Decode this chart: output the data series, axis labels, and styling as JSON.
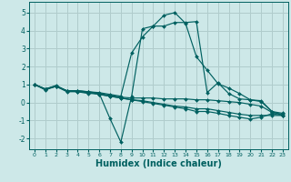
{
  "bg_color": "#cde8e8",
  "grid_color": "#b0cccc",
  "line_color": "#006060",
  "marker_color": "#006060",
  "xlabel": "Humidex (Indice chaleur)",
  "xlabel_fontsize": 7,
  "xlim": [
    -0.5,
    23.5
  ],
  "ylim": [
    -2.6,
    5.6
  ],
  "xticks": [
    0,
    1,
    2,
    3,
    4,
    5,
    6,
    7,
    8,
    9,
    10,
    11,
    12,
    13,
    14,
    15,
    16,
    17,
    18,
    19,
    20,
    21,
    22,
    23
  ],
  "yticks": [
    -2,
    -1,
    0,
    1,
    2,
    3,
    4,
    5
  ],
  "curve1_x": [
    0,
    1,
    2,
    3,
    4,
    5,
    6,
    7,
    8,
    9,
    10,
    11,
    12,
    13,
    14,
    15,
    16,
    17,
    18,
    19,
    20,
    21,
    22,
    23
  ],
  "curve1_y": [
    1.0,
    0.7,
    0.9,
    0.6,
    0.6,
    0.5,
    0.5,
    -0.9,
    -2.2,
    0.35,
    4.1,
    4.25,
    4.85,
    5.0,
    4.4,
    2.55,
    1.8,
    1.05,
    0.8,
    0.5,
    0.15,
    0.1,
    -0.5,
    -0.72
  ],
  "curve2_x": [
    0,
    1,
    2,
    3,
    4,
    5,
    6,
    7,
    8,
    9,
    10,
    11,
    12,
    13,
    14,
    15,
    16,
    17,
    18,
    19,
    20,
    21,
    22,
    23
  ],
  "curve2_y": [
    1.0,
    0.75,
    0.95,
    0.65,
    0.65,
    0.6,
    0.55,
    0.45,
    0.35,
    2.75,
    3.65,
    4.25,
    4.25,
    4.45,
    4.45,
    4.5,
    0.55,
    1.1,
    0.5,
    0.2,
    0.15,
    0.05,
    -0.5,
    -0.6
  ],
  "curve3_x": [
    0,
    1,
    2,
    3,
    4,
    5,
    6,
    7,
    8,
    9,
    10,
    11,
    12,
    13,
    14,
    15,
    16,
    17,
    18,
    19,
    20,
    21,
    22,
    23
  ],
  "curve3_y": [
    1.0,
    0.75,
    0.9,
    0.65,
    0.65,
    0.6,
    0.5,
    0.4,
    0.3,
    0.25,
    0.25,
    0.25,
    0.2,
    0.2,
    0.2,
    0.15,
    0.15,
    0.1,
    0.05,
    0.0,
    -0.1,
    -0.2,
    -0.55,
    -0.65
  ],
  "curve4_x": [
    0,
    1,
    2,
    3,
    4,
    5,
    6,
    7,
    8,
    9,
    10,
    11,
    12,
    13,
    14,
    15,
    16,
    17,
    18,
    19,
    20,
    21,
    22,
    23
  ],
  "curve4_y": [
    1.0,
    0.75,
    0.9,
    0.65,
    0.65,
    0.58,
    0.45,
    0.35,
    0.25,
    0.15,
    0.1,
    0.0,
    -0.1,
    -0.2,
    -0.25,
    -0.35,
    -0.35,
    -0.45,
    -0.55,
    -0.65,
    -0.72,
    -0.72,
    -0.72,
    -0.72
  ],
  "curve5_x": [
    0,
    1,
    2,
    3,
    4,
    5,
    6,
    7,
    8,
    9,
    10,
    11,
    12,
    13,
    14,
    15,
    16,
    17,
    18,
    19,
    20,
    21,
    22,
    23
  ],
  "curve5_y": [
    1.0,
    0.75,
    0.9,
    0.65,
    0.6,
    0.55,
    0.45,
    0.35,
    0.25,
    0.15,
    0.05,
    -0.05,
    -0.15,
    -0.25,
    -0.35,
    -0.5,
    -0.5,
    -0.6,
    -0.72,
    -0.82,
    -0.92,
    -0.82,
    -0.62,
    -0.72
  ]
}
